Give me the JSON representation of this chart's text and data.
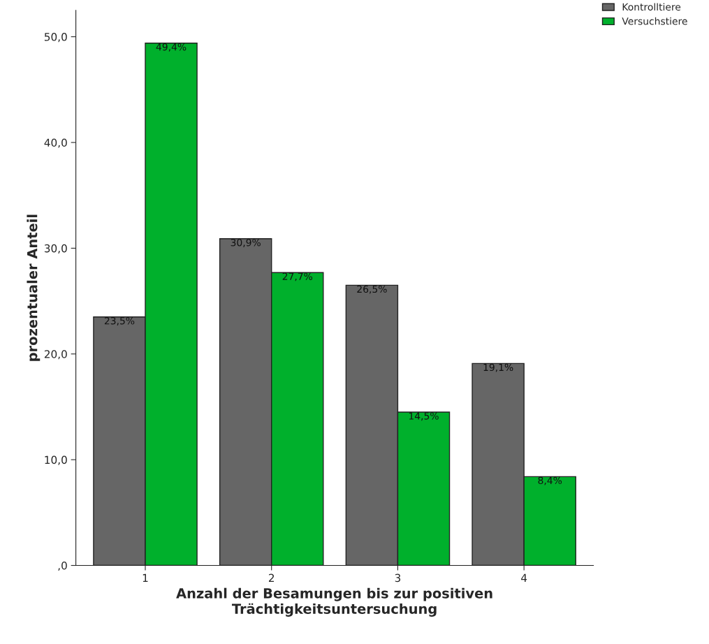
{
  "chart_data": {
    "type": "bar",
    "xlabel": "Anzahl der Besamungen bis zur positiven\nTrächtigkeitsuntersuchung",
    "ylabel": "prozentualer Anteil",
    "categories": [
      "1",
      "2",
      "3",
      "4"
    ],
    "series": [
      {
        "name": "Kontrolltiere",
        "color": "#666666",
        "values": [
          23.5,
          30.9,
          26.5,
          19.1
        ],
        "value_labels": [
          "23,5%",
          "30,9%",
          "26,5%",
          "19,1%"
        ]
      },
      {
        "name": "Versuchstiere",
        "color": "#00b02c",
        "values": [
          49.4,
          27.7,
          14.5,
          8.4
        ],
        "value_labels": [
          "49,4%",
          "27,7%",
          "14,5%",
          "8,4%"
        ]
      }
    ],
    "ylim": [
      0,
      52.5
    ],
    "yticks": [
      {
        "value": 0,
        "label": ",0"
      },
      {
        "value": 10,
        "label": "10,0"
      },
      {
        "value": 20,
        "label": "20,0"
      },
      {
        "value": 30,
        "label": "30,0"
      },
      {
        "value": 40,
        "label": "40,0"
      },
      {
        "value": 50,
        "label": "50,0"
      }
    ],
    "legend": "top right",
    "grid": false
  }
}
